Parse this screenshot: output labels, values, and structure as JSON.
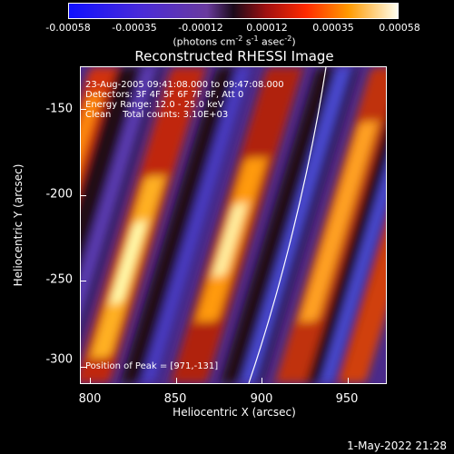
{
  "colorbar": {
    "ticks": [
      "-0.00058",
      "-0.00035",
      "-0.00012",
      "0.00012",
      "0.00035",
      "0.00058"
    ],
    "units_text": "(photons cm",
    "units_sup1": "-2",
    "units_mid": " s",
    "units_sup2": "-1",
    "units_tail": " asec",
    "units_sup3": "-2",
    "units_end": ")"
  },
  "title": "Reconstructed RHESSI Image",
  "info": {
    "time_range": "23-Aug-2005 09:41:08.000 to 09:47:08.000",
    "detectors": "Detectors: 3F 4F 5F 6F 7F 8F, Att 0",
    "energy": "Energy Range: 12.0 - 25.0 keV",
    "clean": "Clean    Total counts: 3.10E+03",
    "peak": "Position of Peak = [971,-131]"
  },
  "axes": {
    "ylabel": "Heliocentric Y (arcsec)",
    "xlabel": "Heliocentric X (arcsec)",
    "yticks": [
      "-150",
      "-200",
      "-250",
      "-300"
    ],
    "xticks": [
      "800",
      "850",
      "900",
      "950"
    ]
  },
  "timestamp": "1-May-2022 21:28"
}
